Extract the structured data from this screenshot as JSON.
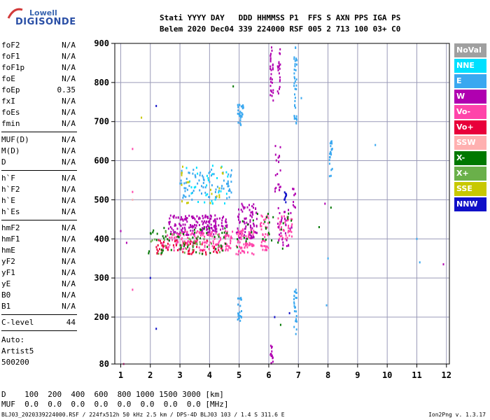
{
  "logo": {
    "line1": "Lowell",
    "line2": "DIGISONDE"
  },
  "header": {
    "labels": "Stati YYYY DAY   DDD HHMMSS P1  FFS S AXN PPS IGA PS",
    "values": "Belem 2020 Dec04 339 224000 RSF 005 2 713 100 03+ C0"
  },
  "params": {
    "group1": [
      {
        "name": "foF2",
        "value": "N/A"
      },
      {
        "name": "foF1",
        "value": "N/A"
      },
      {
        "name": "foF1p",
        "value": "N/A"
      },
      {
        "name": "foE",
        "value": "N/A"
      },
      {
        "name": "foEp",
        "value": "0.35"
      },
      {
        "name": "fxI",
        "value": "N/A"
      },
      {
        "name": "foEs",
        "value": "N/A"
      },
      {
        "name": "fmin",
        "value": "N/A"
      }
    ],
    "group2": [
      {
        "name": "MUF(D)",
        "value": "N/A"
      },
      {
        "name": "M(D)",
        "value": "N/A"
      },
      {
        "name": "D",
        "value": "N/A"
      }
    ],
    "group3": [
      {
        "name": "h`F",
        "value": "N/A"
      },
      {
        "name": "h`F2",
        "value": "N/A"
      },
      {
        "name": "h`E",
        "value": "N/A"
      },
      {
        "name": "h`Es",
        "value": "N/A"
      }
    ],
    "group4": [
      {
        "name": "hmF2",
        "value": "N/A"
      },
      {
        "name": "hmF1",
        "value": "N/A"
      },
      {
        "name": "hmE",
        "value": "N/A"
      },
      {
        "name": "yF2",
        "value": "N/A"
      },
      {
        "name": "yF1",
        "value": "N/A"
      },
      {
        "name": "yE",
        "value": "N/A"
      },
      {
        "name": "B0",
        "value": "N/A"
      },
      {
        "name": "B1",
        "value": "N/A"
      }
    ],
    "clevel": {
      "name": "C-level",
      "value": "44"
    }
  },
  "auto": {
    "line1": "Auto:",
    "line2": "Artist5",
    "line3": "500200"
  },
  "legend": [
    {
      "label": "NoVal",
      "color": "#a0a0a0"
    },
    {
      "label": "NNE",
      "color": "#00e0ff"
    },
    {
      "label": "E",
      "color": "#3aa8f0"
    },
    {
      "label": "W",
      "color": "#b000b0"
    },
    {
      "label": "Vo-",
      "color": "#ff44aa"
    },
    {
      "label": "Vo+",
      "color": "#e8003a"
    },
    {
      "label": "SSW",
      "color": "#ffb0b0"
    },
    {
      "label": "X-",
      "color": "#007800"
    },
    {
      "label": "X+",
      "color": "#6ab04a"
    },
    {
      "label": "SSE",
      "color": "#c8c800"
    },
    {
      "label": "NNW",
      "color": "#1010c8"
    }
  ],
  "footer": {
    "d_row": "D    100  200  400  600  800 1000 1500 3000 [km]",
    "muf_row": "MUF  0.0  0.0  0.0  0.0  0.0  0.0  0.0  0.0 [MHz]",
    "file_info": "BLJ03_2020339224000.RSF / 224fx512h 50 kHz 2.5 km / DPS-4D BLJ03 103 / 1.4 S 311.6 E",
    "version": "Ion2Png v. 1.3.17"
  },
  "chart_data": {
    "type": "scatter",
    "xlim": [
      0.8,
      12.1
    ],
    "ylim": [
      80,
      900
    ],
    "x_ticks": [
      "1",
      "2",
      "3",
      "4",
      "5",
      "6",
      "7",
      "8",
      "9",
      "10",
      "11",
      "12"
    ],
    "y_ticks": [
      "80",
      "200",
      "300",
      "400",
      "500",
      "600",
      "700",
      "800",
      "900"
    ],
    "grid": true,
    "clusters": [
      {
        "color": "#b000b0",
        "x": [
          2.6,
          4.6
        ],
        "y": [
          410,
          460
        ],
        "count": 180
      },
      {
        "color": "#ff44aa",
        "x": [
          2.4,
          4.8
        ],
        "y": [
          370,
          420
        ],
        "count": 170
      },
      {
        "color": "#e8003a",
        "x": [
          2.2,
          4.5
        ],
        "y": [
          360,
          400
        ],
        "count": 60
      },
      {
        "color": "#007800",
        "x": [
          1.9,
          4.6
        ],
        "y": [
          360,
          430
        ],
        "count": 60
      },
      {
        "color": "#6ab04a",
        "x": [
          2.0,
          4.5
        ],
        "y": [
          360,
          420
        ],
        "count": 30
      },
      {
        "color": "#3aa8f0",
        "x": [
          3.0,
          4.8
        ],
        "y": [
          500,
          580
        ],
        "count": 80
      },
      {
        "color": "#00e0ff",
        "x": [
          3.1,
          4.7
        ],
        "y": [
          490,
          590
        ],
        "count": 30
      },
      {
        "color": "#c8c800",
        "x": [
          3.0,
          4.6
        ],
        "y": [
          490,
          590
        ],
        "count": 20
      },
      {
        "color": "#b000b0",
        "x": [
          4.9,
          5.6
        ],
        "y": [
          400,
          490
        ],
        "count": 80
      },
      {
        "color": "#ff44aa",
        "x": [
          4.9,
          5.5
        ],
        "y": [
          360,
          430
        ],
        "count": 70
      },
      {
        "color": "#ff44aa",
        "x": [
          5.7,
          6.0
        ],
        "y": [
          370,
          460
        ],
        "count": 40
      },
      {
        "color": "#ff44aa",
        "x": [
          6.3,
          6.8
        ],
        "y": [
          400,
          460
        ],
        "count": 40
      },
      {
        "color": "#b000b0",
        "x": [
          6.3,
          6.8
        ],
        "y": [
          380,
          480
        ],
        "count": 30
      },
      {
        "color": "#007800",
        "x": [
          4.9,
          6.8
        ],
        "y": [
          370,
          470
        ],
        "count": 30
      },
      {
        "color": "#3aa8f0",
        "x": [
          4.95,
          5.15
        ],
        "y": [
          690,
          750
        ],
        "count": 30
      },
      {
        "color": "#b000b0",
        "x": [
          6.05,
          6.15
        ],
        "y": [
          740,
          890
        ],
        "count": 30
      },
      {
        "color": "#b000b0",
        "x": [
          6.3,
          6.4
        ],
        "y": [
          760,
          890
        ],
        "count": 20
      },
      {
        "color": "#3aa8f0",
        "x": [
          6.85,
          6.95
        ],
        "y": [
          690,
          890
        ],
        "count": 40
      },
      {
        "color": "#3aa8f0",
        "x": [
          8.05,
          8.15
        ],
        "y": [
          560,
          650
        ],
        "count": 25
      },
      {
        "color": "#3aa8f0",
        "x": [
          4.95,
          5.1
        ],
        "y": [
          190,
          250
        ],
        "count": 20
      },
      {
        "color": "#3aa8f0",
        "x": [
          6.85,
          6.95
        ],
        "y": [
          150,
          270
        ],
        "count": 25
      },
      {
        "color": "#b000b0",
        "x": [
          6.05,
          6.15
        ],
        "y": [
          80,
          130
        ],
        "count": 15
      },
      {
        "color": "#b000b0",
        "x": [
          6.2,
          6.4
        ],
        "y": [
          520,
          640
        ],
        "count": 20
      },
      {
        "color": "#1010c8",
        "x": [
          6.5,
          6.6
        ],
        "y": [
          490,
          520
        ],
        "count": 10
      },
      {
        "color": "#b000b0",
        "x": [
          6.8,
          6.9
        ],
        "y": [
          480,
          540
        ],
        "count": 10
      }
    ],
    "points": [
      {
        "x": 1.4,
        "y": 500,
        "color": "#ffb0b0"
      },
      {
        "x": 1.4,
        "y": 630,
        "color": "#ff44aa"
      },
      {
        "x": 1.4,
        "y": 520,
        "color": "#ff44aa"
      },
      {
        "x": 1.2,
        "y": 390,
        "color": "#b000b0"
      },
      {
        "x": 1.0,
        "y": 420,
        "color": "#b000b0"
      },
      {
        "x": 1.7,
        "y": 710,
        "color": "#c8c800"
      },
      {
        "x": 2.2,
        "y": 740,
        "color": "#1010c8"
      },
      {
        "x": 1.4,
        "y": 270,
        "color": "#ff44aa"
      },
      {
        "x": 2.0,
        "y": 300,
        "color": "#1010c8"
      },
      {
        "x": 2.2,
        "y": 170,
        "color": "#1010c8"
      },
      {
        "x": 1.1,
        "y": 80,
        "color": "#ff44aa"
      },
      {
        "x": 4.8,
        "y": 790,
        "color": "#007800"
      },
      {
        "x": 7.1,
        "y": 760,
        "color": "#3aa8f0"
      },
      {
        "x": 7.7,
        "y": 430,
        "color": "#007800"
      },
      {
        "x": 7.9,
        "y": 490,
        "color": "#b000b0"
      },
      {
        "x": 7.95,
        "y": 230,
        "color": "#3aa8f0"
      },
      {
        "x": 9.6,
        "y": 640,
        "color": "#3aa8f0"
      },
      {
        "x": 11.0,
        "y": 400,
        "color": "#3aa8f0"
      },
      {
        "x": 11.1,
        "y": 340,
        "color": "#3aa8f0"
      },
      {
        "x": 11.9,
        "y": 335,
        "color": "#b000b0"
      },
      {
        "x": 6.2,
        "y": 200,
        "color": "#1010c8"
      },
      {
        "x": 6.7,
        "y": 210,
        "color": "#1010c8"
      },
      {
        "x": 6.4,
        "y": 180,
        "color": "#007800"
      },
      {
        "x": 8.0,
        "y": 350,
        "color": "#3aa8f0"
      },
      {
        "x": 8.1,
        "y": 480,
        "color": "#007800"
      }
    ]
  }
}
